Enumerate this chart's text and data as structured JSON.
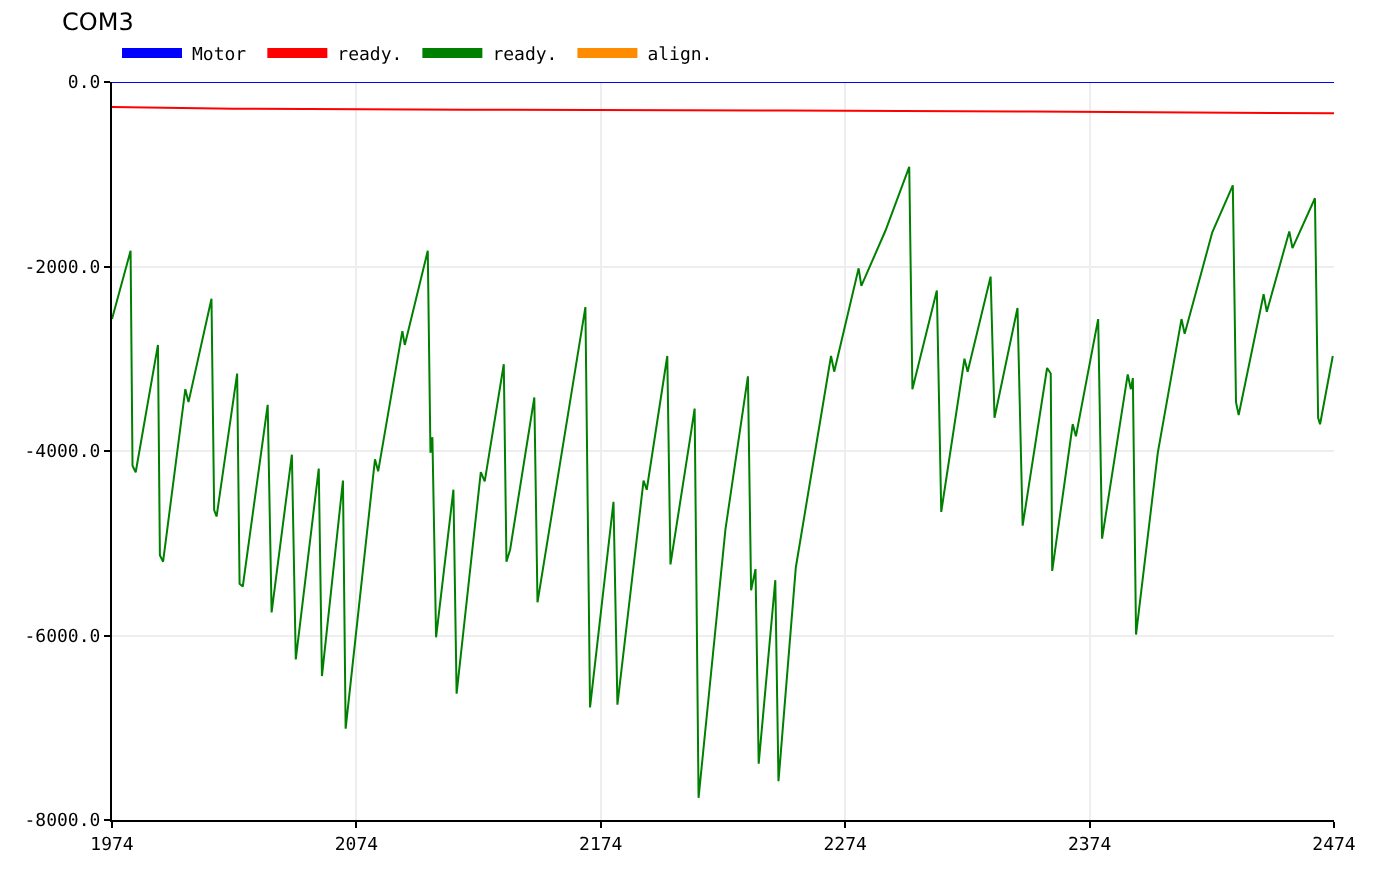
{
  "chart_data": {
    "type": "line",
    "title": "COM3",
    "xlim": [
      1974,
      2474
    ],
    "xticks": [
      1974,
      2074,
      2174,
      2274,
      2374,
      2474
    ],
    "ylim": [
      -8000,
      0
    ],
    "yticks": [
      {
        "value": 0,
        "label": "0.0"
      },
      {
        "value": -2000,
        "label": "-2000.0"
      },
      {
        "value": -4000,
        "label": "-4000.0"
      },
      {
        "value": -6000,
        "label": "-6000.0"
      },
      {
        "value": -8000,
        "label": "-8000.0"
      }
    ],
    "grid": true,
    "legend": "top left",
    "marker": "none",
    "line_style": "solid",
    "series": [
      {
        "name": "Motor",
        "color": "#0000ff",
        "x": [
          1974,
          2474
        ],
        "values": [
          0,
          0
        ]
      },
      {
        "name": "ready.",
        "color": "#ff0000",
        "x": [
          1974,
          2024,
          2119,
          2250,
          2350,
          2474
        ],
        "values": [
          -270,
          -290,
          -300,
          -310,
          -320,
          -340
        ]
      },
      {
        "name": "ready.",
        "color": "#008000",
        "x": [
          1974,
          1981.6,
          1982.4,
          1983.7,
          1992.8,
          1993.6,
          1994.9,
          2004,
          2005.3,
          2014.7,
          2015.8,
          2016.8,
          2025.2,
          2026.2,
          2027.5,
          2037.7,
          2039.3,
          2047.6,
          2049.2,
          2058.6,
          2059.9,
          2068.5,
          2069.6,
          2081.6,
          2082.9,
          2092.8,
          2093.8,
          2103.2,
          2104.3,
          2105.1,
          2106.6,
          2113.7,
          2115,
          2124.9,
          2126.5,
          2134.3,
          2135.4,
          2136.9,
          2146.8,
          2148.1,
          2167.7,
          2169.6,
          2179.2,
          2180.8,
          2191.5,
          2192.8,
          2201.2,
          2202.5,
          2210.8,
          2212.4,
          2214,
          2225,
          2234.2,
          2235.5,
          2237.3,
          2238.6,
          2245.4,
          2246.7,
          2253.8,
          2268.2,
          2269.5,
          2279.5,
          2280.6,
          2290.5,
          2300.2,
          2301.5,
          2311.5,
          2313.3,
          2322.8,
          2324.1,
          2333.5,
          2335.1,
          2344.5,
          2346.6,
          2356.6,
          2358.1,
          2358.7,
          2367.1,
          2368.4,
          2377.5,
          2379.1,
          2389.6,
          2390.9,
          2391.7,
          2393,
          2401.9,
          2411.6,
          2412.9,
          2424.2,
          2432.6,
          2433.9,
          2435,
          2445.2,
          2446.5,
          2455.7,
          2457,
          2466.2,
          2467.5,
          2468.3,
          2473.5
        ],
        "values": [
          -2570,
          -1830,
          -4160,
          -4230,
          -2850,
          -5130,
          -5200,
          -3330,
          -3470,
          -2350,
          -4640,
          -4710,
          -3160,
          -5440,
          -5470,
          -3500,
          -5750,
          -4040,
          -6260,
          -4190,
          -6440,
          -4320,
          -7010,
          -4090,
          -4220,
          -2700,
          -2850,
          -1830,
          -4020,
          -3850,
          -6020,
          -4420,
          -6630,
          -4230,
          -4330,
          -3060,
          -5200,
          -5070,
          -3420,
          -5640,
          -2440,
          -6780,
          -4550,
          -6750,
          -4320,
          -4420,
          -2970,
          -5230,
          -3820,
          -3540,
          -7760,
          -4850,
          -3190,
          -5510,
          -5280,
          -7390,
          -5400,
          -7580,
          -5260,
          -2970,
          -3140,
          -2020,
          -2210,
          -1610,
          -920,
          -3330,
          -2260,
          -4660,
          -3000,
          -3140,
          -2110,
          -3640,
          -2450,
          -4810,
          -3100,
          -3160,
          -5300,
          -3710,
          -3840,
          -2570,
          -4950,
          -3170,
          -3330,
          -3210,
          -5990,
          -4020,
          -2570,
          -2730,
          -1630,
          -1120,
          -3470,
          -3610,
          -2300,
          -2490,
          -1620,
          -1800,
          -1260,
          -3640,
          -3710,
          -2970
        ]
      },
      {
        "name": "align.",
        "color": "#ff8c00"
      }
    ]
  }
}
